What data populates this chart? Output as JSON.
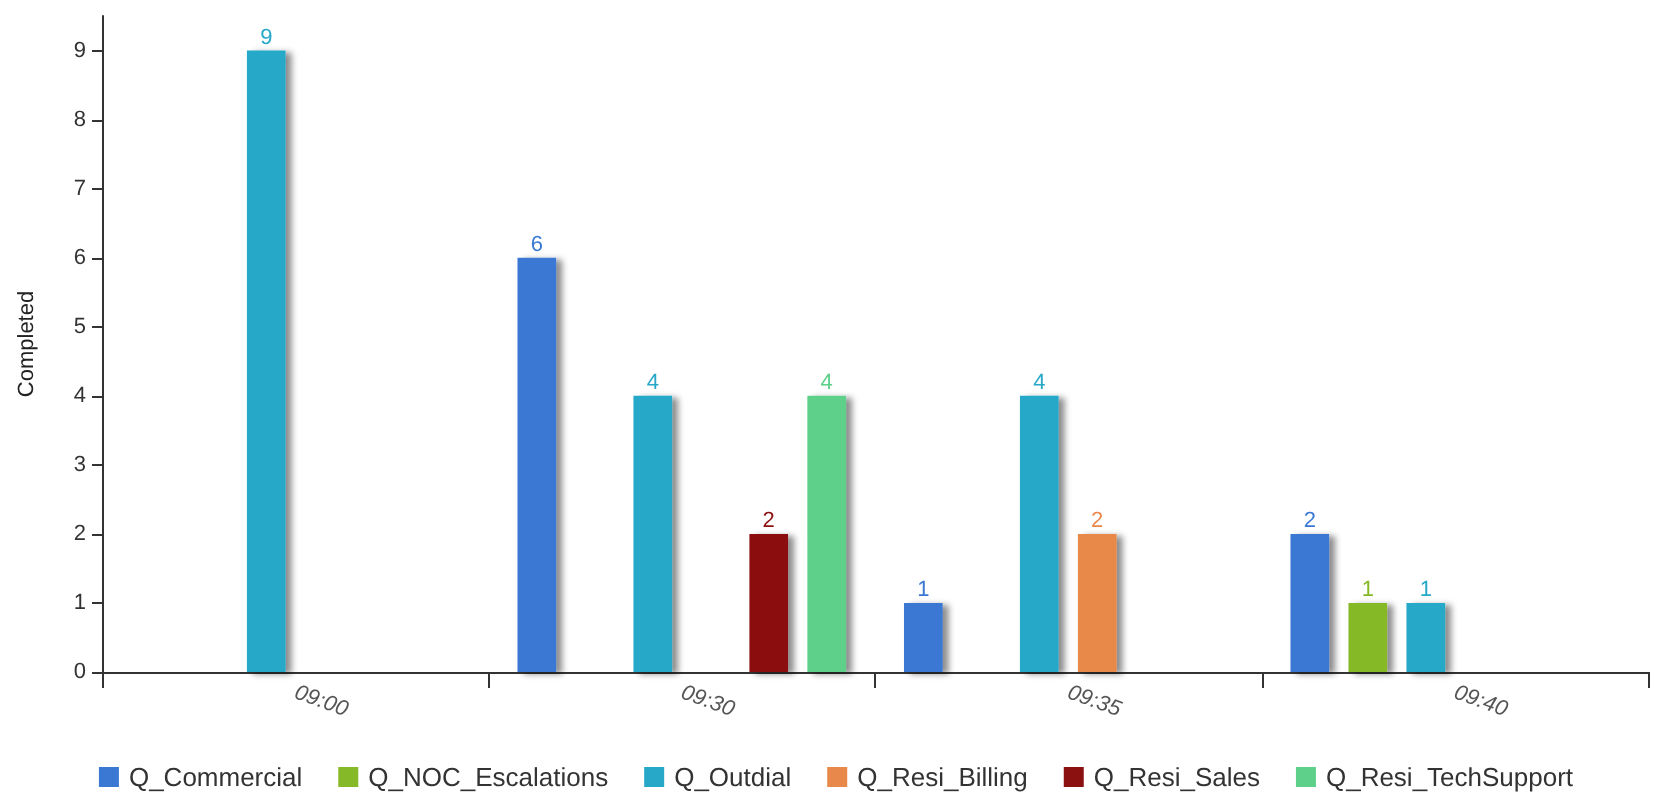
{
  "chart_data": {
    "type": "bar",
    "ylabel": "Completed",
    "categories": [
      "09:00",
      "09:30",
      "09:35",
      "09:40"
    ],
    "series": [
      {
        "name": "Q_Commercial",
        "color": "#3a78d4",
        "values": [
          null,
          6,
          1,
          2
        ]
      },
      {
        "name": "Q_NOC_Escalations",
        "color": "#86b927",
        "values": [
          null,
          null,
          null,
          1
        ]
      },
      {
        "name": "Q_Outdial",
        "color": "#27a8c8",
        "values": [
          9,
          4,
          4,
          1
        ]
      },
      {
        "name": "Q_Resi_Billing",
        "color": "#e8884a",
        "values": [
          null,
          null,
          2,
          null
        ]
      },
      {
        "name": "Q_Resi_Sales",
        "color": "#8b1010",
        "values": [
          null,
          2,
          null,
          null
        ]
      },
      {
        "name": "Q_Resi_TechSupport",
        "color": "#5fd08a",
        "values": [
          null,
          4,
          null,
          null
        ]
      }
    ],
    "ylim": [
      0,
      9.5
    ],
    "yticks": [
      0,
      1,
      2,
      3,
      4,
      5,
      6,
      7,
      8,
      9
    ],
    "grid": false,
    "legend": "bottom",
    "data_labels": true
  }
}
